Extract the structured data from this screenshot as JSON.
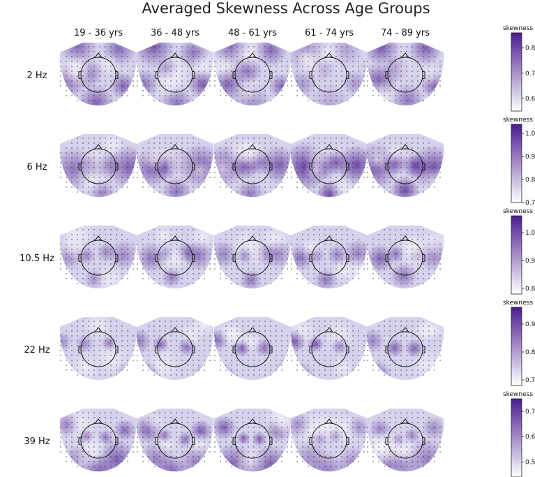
{
  "chart_data": {
    "type": "heatmap",
    "title": "Averaged Skewness Across Age Groups",
    "colormap": [
      "#ffffff",
      "#4b1c8e"
    ],
    "columns": [
      "19 - 36 yrs",
      "36 - 48 yrs",
      "48 - 61 yrs",
      "61 - 74 yrs",
      "74 - 89 yrs"
    ],
    "rows": [
      {
        "label": "2 Hz",
        "colorbar_label": "skewness",
        "range": [
          0.55,
          0.86
        ],
        "ticks": [
          "0.6",
          "0.7",
          "0.8"
        ],
        "intensity": [
          0.6,
          0.58,
          0.55,
          0.32,
          0.66
        ]
      },
      {
        "label": "6 Hz",
        "colorbar_label": "skewness",
        "range": [
          0.7,
          1.04
        ],
        "ticks": [
          "0.7",
          "0.8",
          "0.9",
          "1.0"
        ],
        "intensity": [
          0.55,
          0.62,
          0.66,
          0.7,
          0.68
        ]
      },
      {
        "label": "10.5 Hz",
        "colorbar_label": "skewness",
        "range": [
          0.78,
          1.06
        ],
        "ticks": [
          "0.8",
          "0.9",
          "1.0"
        ],
        "intensity": [
          0.45,
          0.45,
          0.55,
          0.52,
          0.55
        ]
      },
      {
        "label": "22 Hz",
        "colorbar_label": "skewness",
        "range": [
          0.68,
          0.96
        ],
        "ticks": [
          "0.7",
          "0.8",
          "0.9"
        ],
        "intensity": [
          0.5,
          0.55,
          0.6,
          0.65,
          0.58
        ]
      },
      {
        "label": "39 Hz",
        "colorbar_label": "skewness",
        "range": [
          0.44,
          0.75
        ],
        "ticks": [
          "0.5",
          "0.6",
          "0.7"
        ],
        "intensity": [
          0.62,
          0.58,
          0.58,
          0.48,
          0.45
        ]
      }
    ]
  }
}
